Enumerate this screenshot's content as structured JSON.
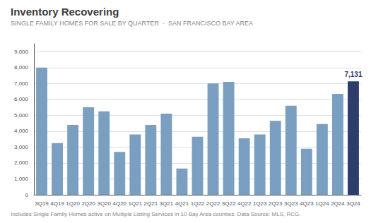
{
  "chart_data": {
    "type": "bar",
    "title": "Inventory Recovering",
    "subtitle": "SINGLE FAMILY HOMES FOR SALE BY QUARTER  ·  SAN FRANCISCO BAY AREA",
    "footnote": "Includes Single Family Homes active on Multiple Listing Services in 10 Bay Area counties. Data Source: MLS, RCG.",
    "categories": [
      "3Q19",
      "4Q19",
      "1Q20",
      "2Q20",
      "3Q20",
      "4Q20",
      "1Q21",
      "2Q21",
      "3Q21",
      "4Q21",
      "1Q22",
      "2Q22",
      "3Q22",
      "4Q22",
      "1Q23",
      "2Q23",
      "3Q23",
      "4Q23",
      "1Q24",
      "2Q24",
      "3Q24"
    ],
    "values": [
      8000,
      3250,
      4400,
      5500,
      5250,
      2700,
      3800,
      4400,
      5100,
      1650,
      3650,
      7000,
      7100,
      3550,
      3800,
      4650,
      5600,
      2900,
      4450,
      6350,
      7131
    ],
    "colors": [
      "#7a9fc0",
      "#7a9fc0",
      "#7a9fc0",
      "#7a9fc0",
      "#7a9fc0",
      "#7a9fc0",
      "#7a9fc0",
      "#7a9fc0",
      "#7a9fc0",
      "#7a9fc0",
      "#7a9fc0",
      "#7a9fc0",
      "#7a9fc0",
      "#7a9fc0",
      "#7a9fc0",
      "#7a9fc0",
      "#7a9fc0",
      "#7a9fc0",
      "#7a9fc0",
      "#7a9fc0",
      "#2d3e6d"
    ],
    "annotations": [
      {
        "x": "3Q24",
        "y": 7131,
        "text": "7,131",
        "color": "#2d3e6d"
      }
    ],
    "ylim": [
      0,
      9500
    ],
    "yticks": [
      0,
      {
        "value": 1000,
        "label": "1,000"
      },
      {
        "value": 2000,
        "label": "2,000"
      },
      {
        "value": 3000,
        "label": "3,000"
      },
      {
        "value": 4000,
        "label": "4,000"
      },
      {
        "value": 5000,
        "label": "5,000"
      },
      {
        "value": 6000,
        "label": "6,000"
      },
      {
        "value": 7000,
        "label": "7,000"
      },
      {
        "value": 8000,
        "label": "8,000"
      },
      {
        "value": 9000,
        "label": "9,000"
      }
    ],
    "grid": true
  }
}
